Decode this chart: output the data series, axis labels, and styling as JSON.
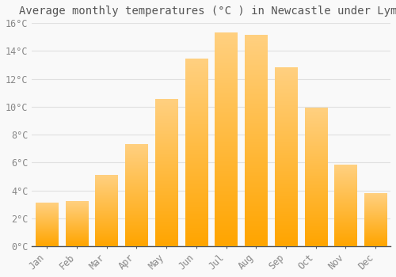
{
  "title": "Average monthly temperatures (°C ) in Newcastle under Lyme",
  "months": [
    "Jan",
    "Feb",
    "Mar",
    "Apr",
    "May",
    "Jun",
    "Jul",
    "Aug",
    "Sep",
    "Oct",
    "Nov",
    "Dec"
  ],
  "values": [
    3.1,
    3.2,
    5.1,
    7.3,
    10.5,
    13.4,
    15.3,
    15.1,
    12.8,
    9.9,
    5.8,
    3.8
  ],
  "bar_color_top": "#FFA500",
  "bar_color_bottom": "#FFD080",
  "ylim": [
    0,
    16
  ],
  "yticks": [
    0,
    2,
    4,
    6,
    8,
    10,
    12,
    14,
    16
  ],
  "ytick_labels": [
    "0°C",
    "2°C",
    "4°C",
    "6°C",
    "8°C",
    "10°C",
    "12°C",
    "14°C",
    "16°C"
  ],
  "background_color": "#f9f9f9",
  "grid_color": "#e0e0e0",
  "title_fontsize": 10,
  "tick_fontsize": 8.5,
  "bar_edge_color": "#ffffff",
  "bar_width": 0.75
}
